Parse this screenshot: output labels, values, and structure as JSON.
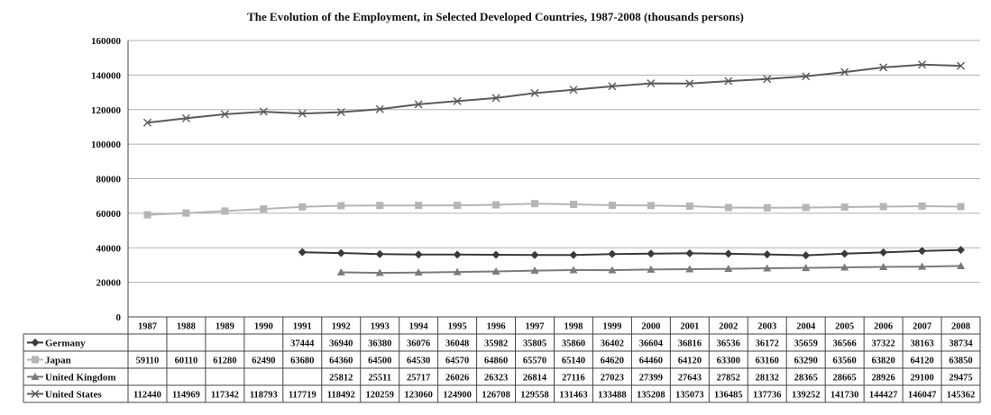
{
  "title": "The Evolution of the Employment, in Selected Developed Countries, 1987-2008 (thousands persons)",
  "colors": {
    "Germany": "#3a3a3a",
    "Japan": "#b5b5b5",
    "United Kingdom": "#7a7a7a",
    "United States": "#5a5a5a",
    "grid": "#b0b0b0"
  },
  "chart_data": {
    "type": "line",
    "title": "The Evolution of the Employment, in Selected Developed Countries, 1987-2008 (thousands persons)",
    "xlabel": "",
    "ylabel": "",
    "ylim": [
      0,
      160000
    ],
    "yticks": [
      "0",
      "20000",
      "40000",
      "60000",
      "80000",
      "100000",
      "120000",
      "140000",
      "160000"
    ],
    "grid": true,
    "legend_position": "data-table-left",
    "categories": [
      "1987",
      "1988",
      "1989",
      "1990",
      "1991",
      "1992",
      "1993",
      "1994",
      "1995",
      "1996",
      "1997",
      "1998",
      "1999",
      "2000",
      "2001",
      "2002",
      "2003",
      "2004",
      "2005",
      "2006",
      "2007",
      "2008"
    ],
    "series": [
      {
        "name": "Germany",
        "marker": "diamond",
        "values": [
          null,
          null,
          null,
          null,
          37444,
          36940,
          36380,
          36076,
          36048,
          35982,
          35805,
          35860,
          36402,
          36604,
          36816,
          36536,
          36172,
          35659,
          36566,
          37322,
          38163,
          38734
        ]
      },
      {
        "name": "Japan",
        "marker": "square",
        "values": [
          59110,
          60110,
          61280,
          62490,
          63680,
          64360,
          64500,
          64530,
          64570,
          64860,
          65570,
          65140,
          64620,
          64460,
          64120,
          63300,
          63160,
          63290,
          63560,
          63820,
          64120,
          63850
        ]
      },
      {
        "name": "United Kingdom",
        "marker": "triangle",
        "values": [
          null,
          null,
          null,
          null,
          null,
          25812,
          25511,
          25717,
          26026,
          26323,
          26814,
          27116,
          27023,
          27399,
          27643,
          27852,
          28132,
          28365,
          28665,
          28926,
          29100,
          29475
        ]
      },
      {
        "name": "United States",
        "marker": "x",
        "values": [
          112440,
          114969,
          117342,
          118793,
          117719,
          118492,
          120259,
          123060,
          124900,
          126708,
          129558,
          131463,
          133488,
          135208,
          135073,
          136485,
          137736,
          139252,
          141730,
          144427,
          146047,
          145362
        ]
      }
    ]
  }
}
